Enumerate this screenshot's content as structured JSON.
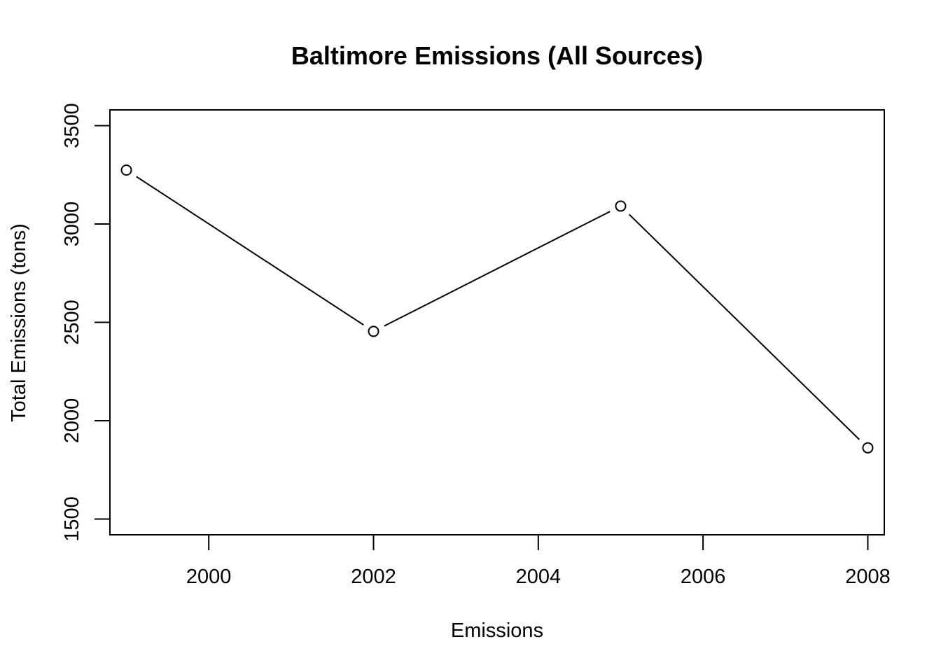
{
  "chart_data": {
    "type": "line",
    "title": "Baltimore Emissions (All Sources)",
    "xlabel": "Emissions",
    "ylabel": "Total Emissions (tons)",
    "x": [
      1999,
      2002,
      2005,
      2008
    ],
    "series": [
      {
        "values": [
          3274,
          2454,
          3091,
          1862
        ]
      }
    ],
    "xlim": [
      1998.8,
      2008.2
    ],
    "ylim": [
      1420,
      3580
    ],
    "xticks": [
      "2000",
      "2002",
      "2004",
      "2006",
      "2008"
    ],
    "yticks": [
      "1500",
      "2000",
      "2500",
      "3000",
      "3500"
    ],
    "markers": "open-circle",
    "grid": false,
    "legend": "none"
  }
}
